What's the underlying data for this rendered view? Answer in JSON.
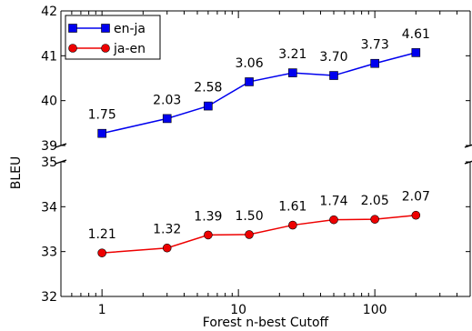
{
  "chart_data": {
    "type": "line",
    "xlabel": "Forest n-best Cutoff",
    "ylabel": "BLEU",
    "x_scale": "log",
    "xlim": [
      0.5,
      500
    ],
    "x_ticks": [
      1,
      10,
      100
    ],
    "x_tick_labels": [
      "1",
      "10",
      "100"
    ],
    "broken_y_axis": true,
    "panels": [
      {
        "ylim": [
          39,
          42
        ],
        "yticks": [
          39,
          40,
          41,
          42
        ]
      },
      {
        "ylim": [
          32,
          35
        ],
        "yticks": [
          32,
          33,
          34,
          35
        ]
      }
    ],
    "legend_position": "top-left",
    "grid": false,
    "series": [
      {
        "name": "en-ja",
        "color": "#0000ee",
        "marker": "square",
        "panel": 0,
        "x": [
          1,
          3,
          6,
          12,
          25,
          50,
          100,
          200
        ],
        "y": [
          39.27,
          39.6,
          39.88,
          40.42,
          40.62,
          40.56,
          40.83,
          41.07
        ],
        "labels": [
          "1.75",
          "2.03",
          "2.58",
          "3.06",
          "3.21",
          "3.70",
          "3.73",
          "4.61"
        ]
      },
      {
        "name": "ja-en",
        "color": "#ee0000",
        "marker": "circle",
        "panel": 1,
        "x": [
          1,
          3,
          6,
          12,
          25,
          50,
          100,
          200
        ],
        "y": [
          32.97,
          33.08,
          33.37,
          33.38,
          33.59,
          33.71,
          33.72,
          33.81
        ],
        "labels": [
          "1.21",
          "1.32",
          "1.39",
          "1.50",
          "1.61",
          "1.74",
          "2.05",
          "2.07"
        ]
      }
    ]
  }
}
